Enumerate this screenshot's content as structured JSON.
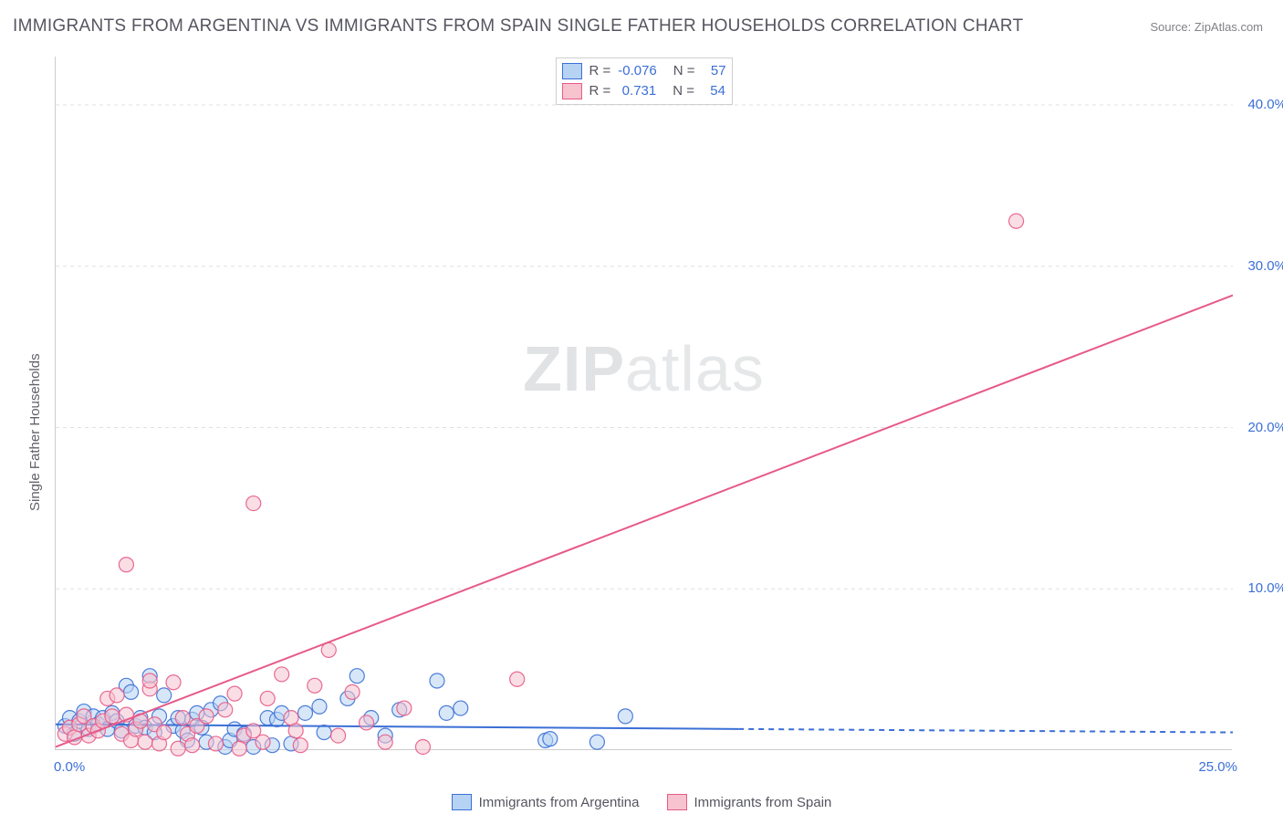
{
  "title": "IMMIGRANTS FROM ARGENTINA VS IMMIGRANTS FROM SPAIN SINGLE FATHER HOUSEHOLDS CORRELATION CHART",
  "source": "Source: ZipAtlas.com",
  "watermark_bold": "ZIP",
  "watermark_rest": "atlas",
  "ylabel": "Single Father Households",
  "x_axis": {
    "min": 0,
    "max": 25,
    "ticks": [
      "0.0%",
      "25.0%"
    ]
  },
  "y_axis": {
    "min": 0,
    "max": 43,
    "gridlines": [
      10,
      20,
      30,
      40
    ],
    "tick_labels": [
      "10.0%",
      "20.0%",
      "30.0%",
      "40.0%"
    ]
  },
  "colors": {
    "series_a_fill": "#b6d3f3",
    "series_a_stroke": "#3b6fd6",
    "series_b_fill": "#f6c3cf",
    "series_b_stroke": "#e75a87",
    "grid": "#e0e0e0",
    "axis": "#cccccc",
    "text": "#555560",
    "value": "#3b6fd6",
    "bg": "#ffffff"
  },
  "marker_radius": 8,
  "marker_opacity": 0.55,
  "line_width": 2,
  "series": [
    {
      "key": "a",
      "label": "Immigrants from Argentina",
      "R": "-0.076",
      "N": "57",
      "fit": {
        "m": -0.02,
        "b": 1.6,
        "solid_until_x": 14.5
      },
      "points": [
        [
          0.2,
          1.5
        ],
        [
          0.3,
          2.0
        ],
        [
          0.4,
          1.0
        ],
        [
          0.5,
          1.8
        ],
        [
          0.6,
          2.4
        ],
        [
          0.7,
          1.3
        ],
        [
          0.8,
          2.1
        ],
        [
          0.9,
          1.6
        ],
        [
          1.0,
          2.0
        ],
        [
          1.1,
          1.3
        ],
        [
          1.2,
          2.3
        ],
        [
          1.3,
          1.8
        ],
        [
          1.4,
          1.2
        ],
        [
          1.5,
          4.0
        ],
        [
          1.6,
          3.6
        ],
        [
          1.7,
          1.5
        ],
        [
          1.8,
          2.0
        ],
        [
          1.9,
          1.4
        ],
        [
          2.0,
          4.6
        ],
        [
          2.1,
          1.1
        ],
        [
          2.2,
          2.1
        ],
        [
          2.3,
          3.4
        ],
        [
          2.5,
          1.5
        ],
        [
          2.6,
          2.0
        ],
        [
          2.7,
          1.2
        ],
        [
          2.8,
          0.6
        ],
        [
          2.9,
          1.9
        ],
        [
          3.0,
          2.3
        ],
        [
          3.1,
          1.4
        ],
        [
          3.2,
          0.5
        ],
        [
          3.3,
          2.5
        ],
        [
          3.5,
          2.9
        ],
        [
          3.6,
          0.2
        ],
        [
          3.7,
          0.6
        ],
        [
          3.8,
          1.3
        ],
        [
          4.0,
          1.0
        ],
        [
          4.2,
          0.2
        ],
        [
          4.5,
          2.0
        ],
        [
          4.6,
          0.3
        ],
        [
          4.7,
          1.9
        ],
        [
          4.8,
          2.3
        ],
        [
          5.0,
          0.4
        ],
        [
          5.3,
          2.3
        ],
        [
          5.6,
          2.7
        ],
        [
          5.7,
          1.1
        ],
        [
          6.2,
          3.2
        ],
        [
          6.4,
          4.6
        ],
        [
          6.7,
          2.0
        ],
        [
          7.0,
          0.9
        ],
        [
          7.3,
          2.5
        ],
        [
          8.1,
          4.3
        ],
        [
          8.3,
          2.3
        ],
        [
          8.6,
          2.6
        ],
        [
          10.4,
          0.6
        ],
        [
          10.5,
          0.7
        ],
        [
          12.1,
          2.1
        ],
        [
          11.5,
          0.5
        ]
      ]
    },
    {
      "key": "b",
      "label": "Immigrants from Spain",
      "R": "0.731",
      "N": "54",
      "fit": {
        "m": 1.12,
        "b": 0.2,
        "solid_until_x": 25
      },
      "points": [
        [
          0.2,
          1.0
        ],
        [
          0.3,
          1.4
        ],
        [
          0.4,
          0.8
        ],
        [
          0.5,
          1.6
        ],
        [
          0.6,
          2.1
        ],
        [
          0.7,
          0.9
        ],
        [
          0.8,
          1.5
        ],
        [
          0.9,
          1.2
        ],
        [
          1.0,
          1.8
        ],
        [
          1.1,
          3.2
        ],
        [
          1.2,
          2.1
        ],
        [
          1.3,
          3.4
        ],
        [
          1.4,
          1.0
        ],
        [
          1.5,
          2.2
        ],
        [
          1.6,
          0.6
        ],
        [
          1.7,
          1.3
        ],
        [
          1.8,
          1.8
        ],
        [
          1.9,
          0.5
        ],
        [
          2.0,
          3.8
        ],
        [
          2.1,
          1.6
        ],
        [
          2.2,
          0.4
        ],
        [
          2.3,
          1.1
        ],
        [
          2.5,
          4.2
        ],
        [
          2.6,
          0.1
        ],
        [
          2.7,
          2.0
        ],
        [
          2.8,
          1.0
        ],
        [
          2.9,
          0.3
        ],
        [
          3.0,
          1.5
        ],
        [
          3.2,
          2.1
        ],
        [
          3.4,
          0.4
        ],
        [
          3.6,
          2.5
        ],
        [
          3.8,
          3.5
        ],
        [
          4.0,
          0.9
        ],
        [
          4.2,
          1.2
        ],
        [
          4.5,
          3.2
        ],
        [
          4.8,
          4.7
        ],
        [
          5.0,
          2.0
        ],
        [
          5.2,
          0.3
        ],
        [
          5.5,
          4.0
        ],
        [
          5.8,
          6.2
        ],
        [
          6.0,
          0.9
        ],
        [
          6.3,
          3.6
        ],
        [
          6.6,
          1.7
        ],
        [
          7.0,
          0.5
        ],
        [
          7.4,
          2.6
        ],
        [
          7.8,
          0.2
        ],
        [
          1.5,
          11.5
        ],
        [
          2.0,
          4.3
        ],
        [
          4.2,
          15.3
        ],
        [
          9.8,
          4.4
        ],
        [
          20.4,
          32.8
        ],
        [
          3.9,
          0.1
        ],
        [
          4.4,
          0.5
        ],
        [
          5.1,
          1.2
        ]
      ]
    }
  ]
}
